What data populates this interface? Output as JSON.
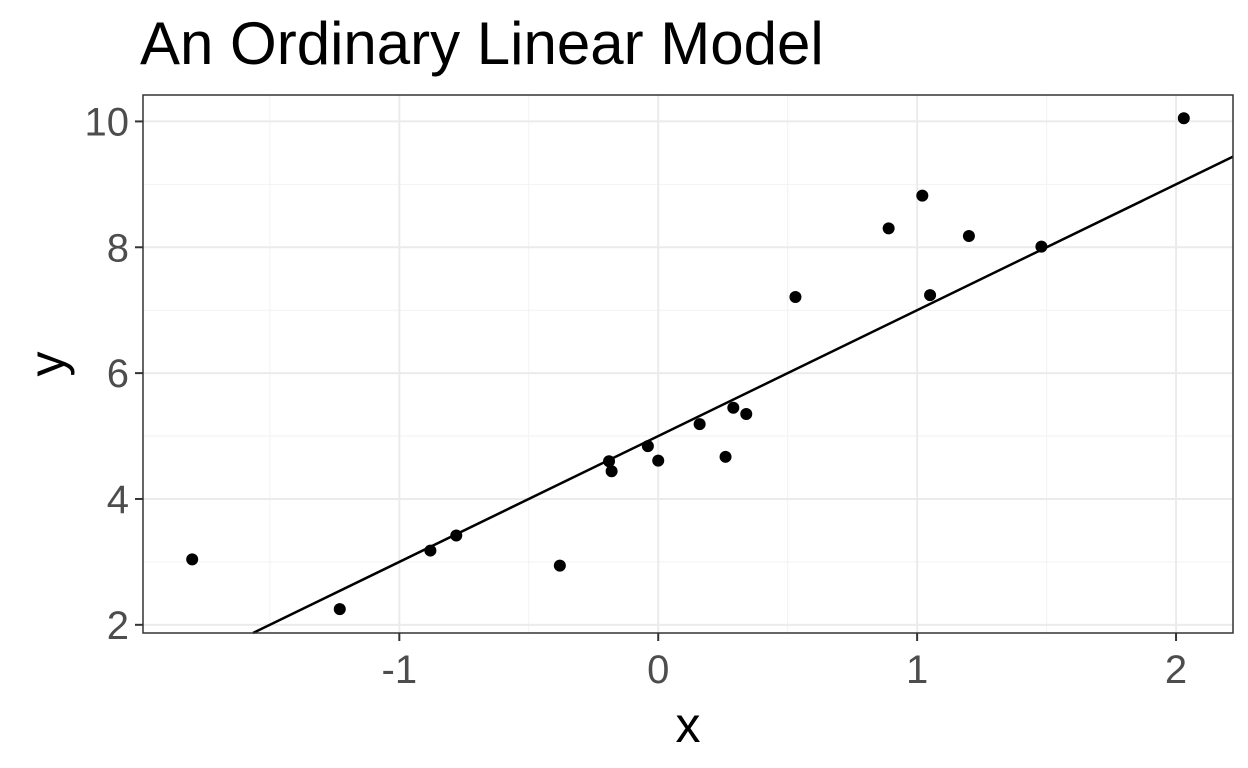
{
  "chart_data": {
    "type": "scatter",
    "title": "An Ordinary Linear Model",
    "xlabel": "x",
    "ylabel": "y",
    "xlim": [
      -1.99,
      2.22
    ],
    "ylim": [
      1.87,
      10.42
    ],
    "x_ticks": [
      -1,
      0,
      1,
      2
    ],
    "x_tick_labels": [
      "-1",
      "0",
      "1",
      "2"
    ],
    "y_ticks": [
      2,
      4,
      6,
      8,
      10
    ],
    "y_tick_labels": [
      "2",
      "4",
      "6",
      "8",
      "10"
    ],
    "grid": true,
    "legend": "none",
    "points": [
      {
        "x": -1.8,
        "y": 3.04
      },
      {
        "x": -1.23,
        "y": 2.25
      },
      {
        "x": -0.88,
        "y": 3.18
      },
      {
        "x": -0.78,
        "y": 3.42
      },
      {
        "x": -0.38,
        "y": 2.94
      },
      {
        "x": -0.19,
        "y": 4.6
      },
      {
        "x": -0.18,
        "y": 4.44
      },
      {
        "x": -0.04,
        "y": 4.84
      },
      {
        "x": 0.0,
        "y": 4.61
      },
      {
        "x": 0.16,
        "y": 5.19
      },
      {
        "x": 0.26,
        "y": 4.67
      },
      {
        "x": 0.29,
        "y": 5.45
      },
      {
        "x": 0.34,
        "y": 5.35
      },
      {
        "x": 0.53,
        "y": 7.21
      },
      {
        "x": 0.89,
        "y": 8.3
      },
      {
        "x": 1.02,
        "y": 8.82
      },
      {
        "x": 1.05,
        "y": 7.24
      },
      {
        "x": 1.2,
        "y": 8.18
      },
      {
        "x": 1.48,
        "y": 8.01
      },
      {
        "x": 2.03,
        "y": 10.05
      }
    ],
    "fit_line": {
      "intercept": 5.0,
      "slope": 2.0
    }
  }
}
